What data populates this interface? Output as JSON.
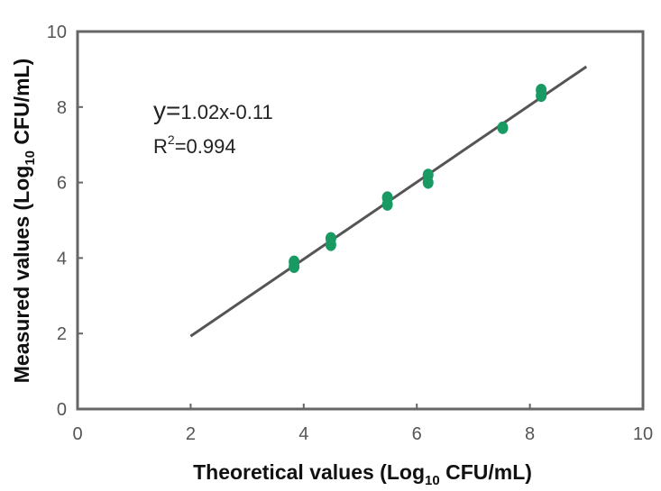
{
  "chart_data": {
    "type": "scatter",
    "xlabel": "Theoretical values (Log10 CFU/mL)",
    "ylabel": "Measured values (Log10 CFU/mL)",
    "xlabel_parts": {
      "pre": "Theoretical values (Log",
      "sub": "10",
      "post": " CFU/mL)"
    },
    "ylabel_parts": {
      "pre": "Measured values (Log",
      "sub": "10",
      "post": " CFU/mL)"
    },
    "xlim": [
      0,
      10
    ],
    "ylim": [
      0,
      10
    ],
    "xticks": [
      "0",
      "2",
      "4",
      "6",
      "8",
      "10"
    ],
    "yticks": [
      "0",
      "2",
      "4",
      "6",
      "8",
      "10"
    ],
    "grid": false,
    "point_color": "#1a9a63",
    "line_color": "#555555",
    "axis_color": "#666666",
    "points": [
      {
        "x": 3.83,
        "y": 3.9
      },
      {
        "x": 3.83,
        "y": 3.77
      },
      {
        "x": 4.48,
        "y": 4.52
      },
      {
        "x": 4.48,
        "y": 4.35
      },
      {
        "x": 5.48,
        "y": 5.6
      },
      {
        "x": 5.48,
        "y": 5.42
      },
      {
        "x": 6.2,
        "y": 6.2
      },
      {
        "x": 6.2,
        "y": 6.0
      },
      {
        "x": 7.52,
        "y": 7.45
      },
      {
        "x": 8.2,
        "y": 8.45
      },
      {
        "x": 8.2,
        "y": 8.3
      }
    ],
    "fit_line": {
      "x0": 2.0,
      "x1": 9.0,
      "slope": 1.02,
      "intercept": -0.11
    },
    "annotation": {
      "eq_prefix": "y=",
      "eq_body": "1.02x-0.11",
      "r2_label": "R",
      "r2_sup": "2",
      "r2_value": "=0.994"
    }
  }
}
